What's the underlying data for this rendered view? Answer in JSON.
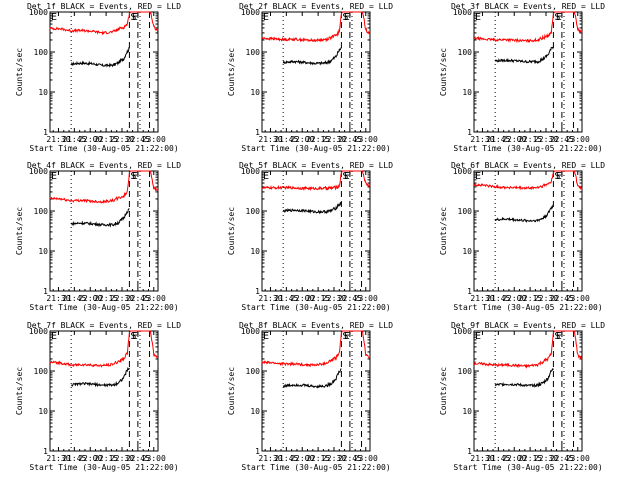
{
  "x_tick_labels": [
    "21:30",
    "21:45",
    "22:00",
    "22:15",
    "22:30",
    "22:45",
    "23:00"
  ],
  "x_label": "Start Time (30-Aug-05 21:22:00)",
  "y_label": "Counts/sec",
  "y_tick_labels": [
    "1",
    "10",
    "100",
    "1000"
  ],
  "event_markers": [
    "S",
    "E"
  ],
  "series_colors": {
    "events": "#000000",
    "lld": "#ff0000"
  },
  "chart_data": [
    {
      "type": "line",
      "title": "Det 1f BLACK = Events, RED = LLD",
      "xlabel": "Start Time (30-Aug-05 21:22:00)",
      "ylabel": "Counts/sec",
      "xlim_minutes_after_2122": [
        0,
        102
      ],
      "ylim_log": [
        1,
        1000
      ],
      "vlines_minutes": {
        "dotted": [
          20,
          85
        ],
        "dashed": [
          75,
          83,
          94
        ]
      },
      "series": [
        {
          "name": "Events",
          "color": "#000000",
          "x_minutes": [
            20,
            30,
            40,
            50,
            60,
            65,
            70,
            72,
            75
          ],
          "values": [
            50,
            53,
            51,
            46,
            47,
            55,
            70,
            95,
            120
          ]
        },
        {
          "name": "LLD",
          "color": "#ff0000",
          "x_minutes": [
            0,
            10,
            20,
            30,
            40,
            50,
            60,
            65,
            70,
            73,
            75,
            76,
            95,
            98,
            102
          ],
          "values": [
            390,
            380,
            340,
            345,
            330,
            300,
            320,
            380,
            420,
            500,
            900,
            1000,
            1000,
            420,
            350
          ]
        }
      ]
    },
    {
      "type": "line",
      "title": "Det 2f BLACK = Events, RED = LLD",
      "xlabel": "Start Time (30-Aug-05 21:22:00)",
      "ylabel": "Counts/sec",
      "xlim_minutes_after_2122": [
        0,
        102
      ],
      "ylim_log": [
        1,
        1000
      ],
      "vlines_minutes": {
        "dotted": [
          20,
          85
        ],
        "dashed": [
          75,
          83,
          94
        ]
      },
      "series": [
        {
          "name": "Events",
          "color": "#000000",
          "x_minutes": [
            20,
            30,
            40,
            50,
            60,
            65,
            70,
            72,
            75
          ],
          "values": [
            55,
            58,
            55,
            52,
            53,
            60,
            78,
            100,
            130
          ]
        },
        {
          "name": "LLD",
          "color": "#ff0000",
          "x_minutes": [
            0,
            10,
            20,
            30,
            40,
            50,
            60,
            65,
            70,
            73,
            75,
            76,
            95,
            98,
            102
          ],
          "values": [
            220,
            215,
            205,
            210,
            200,
            195,
            205,
            230,
            260,
            320,
            900,
            1000,
            1000,
            360,
            300
          ]
        }
      ]
    },
    {
      "type": "line",
      "title": "Det 3f BLACK = Events, RED = LLD",
      "xlabel": "Start Time (30-Aug-05 21:22:00)",
      "ylabel": "Counts/sec",
      "xlim_minutes_after_2122": [
        0,
        102
      ],
      "ylim_log": [
        1,
        1000
      ],
      "vlines_minutes": {
        "dotted": [
          20,
          85
        ],
        "dashed": [
          75,
          83,
          94
        ]
      },
      "series": [
        {
          "name": "Events",
          "color": "#000000",
          "x_minutes": [
            20,
            30,
            40,
            50,
            60,
            65,
            70,
            72,
            75
          ],
          "values": [
            60,
            62,
            60,
            57,
            58,
            66,
            85,
            110,
            140
          ]
        },
        {
          "name": "LLD",
          "color": "#ff0000",
          "x_minutes": [
            0,
            10,
            20,
            30,
            40,
            50,
            60,
            65,
            70,
            73,
            75,
            76,
            95,
            98,
            102
          ],
          "values": [
            220,
            210,
            200,
            205,
            195,
            190,
            200,
            225,
            255,
            310,
            900,
            1000,
            1000,
            360,
            310
          ]
        }
      ]
    },
    {
      "type": "line",
      "title": "Det 4f BLACK = Events, RED = LLD",
      "xlabel": "Start Time (30-Aug-05 21:22:00)",
      "ylabel": "Counts/sec",
      "xlim_minutes_after_2122": [
        0,
        102
      ],
      "ylim_log": [
        1,
        1000
      ],
      "vlines_minutes": {
        "dotted": [
          20,
          85
        ],
        "dashed": [
          75,
          83,
          94
        ]
      },
      "series": [
        {
          "name": "Events",
          "color": "#000000",
          "x_minutes": [
            20,
            30,
            40,
            50,
            60,
            65,
            70,
            72,
            75
          ],
          "values": [
            48,
            50,
            48,
            45,
            46,
            52,
            68,
            90,
            115
          ]
        },
        {
          "name": "LLD",
          "color": "#ff0000",
          "x_minutes": [
            0,
            10,
            20,
            30,
            40,
            50,
            60,
            65,
            70,
            73,
            75,
            76,
            95,
            98,
            102
          ],
          "values": [
            205,
            200,
            180,
            185,
            175,
            170,
            185,
            210,
            240,
            300,
            900,
            1000,
            1000,
            380,
            320
          ]
        }
      ]
    },
    {
      "type": "line",
      "title": "Det 5f BLACK = Events, RED = LLD",
      "xlabel": "Start Time (30-Aug-05 21:22:00)",
      "ylabel": "Counts/sec",
      "xlim_minutes_after_2122": [
        0,
        102
      ],
      "ylim_log": [
        1,
        1000
      ],
      "vlines_minutes": {
        "dotted": [
          20,
          85
        ],
        "dashed": [
          75,
          83,
          94
        ]
      },
      "series": [
        {
          "name": "Events",
          "color": "#000000",
          "x_minutes": [
            20,
            30,
            40,
            50,
            60,
            65,
            70,
            72,
            75
          ],
          "values": [
            100,
            105,
            102,
            95,
            96,
            100,
            120,
            140,
            160
          ]
        },
        {
          "name": "LLD",
          "color": "#ff0000",
          "x_minutes": [
            0,
            10,
            20,
            30,
            40,
            50,
            60,
            65,
            70,
            73,
            75,
            76,
            95,
            98,
            102
          ],
          "values": [
            380,
            380,
            385,
            380,
            370,
            365,
            370,
            375,
            390,
            420,
            900,
            1000,
            1000,
            480,
            420
          ]
        }
      ]
    },
    {
      "type": "line",
      "title": "Det 6f BLACK = Events, RED = LLD",
      "xlabel": "Start Time (30-Aug-05 21:22:00)",
      "ylabel": "Counts/sec",
      "xlim_minutes_after_2122": [
        0,
        102
      ],
      "ylim_log": [
        1,
        1000
      ],
      "vlines_minutes": {
        "dotted": [
          20,
          85
        ],
        "dashed": [
          75,
          83,
          94
        ]
      },
      "series": [
        {
          "name": "Events",
          "color": "#000000",
          "x_minutes": [
            20,
            30,
            40,
            50,
            60,
            65,
            70,
            72,
            75
          ],
          "values": [
            60,
            63,
            60,
            57,
            58,
            66,
            85,
            110,
            140
          ]
        },
        {
          "name": "LLD",
          "color": "#ff0000",
          "x_minutes": [
            0,
            10,
            20,
            30,
            40,
            50,
            60,
            65,
            70,
            73,
            75,
            76,
            95,
            98,
            102
          ],
          "values": [
            450,
            440,
            400,
            390,
            380,
            370,
            385,
            420,
            470,
            560,
            900,
            1000,
            1000,
            420,
            360
          ]
        }
      ]
    },
    {
      "type": "line",
      "title": "Det 7f BLACK = Events, RED = LLD",
      "xlabel": "Start Time (30-Aug-05 21:22:00)",
      "ylabel": "Counts/sec",
      "xlim_minutes_after_2122": [
        0,
        102
      ],
      "ylim_log": [
        1,
        1000
      ],
      "vlines_minutes": {
        "dotted": [
          20,
          85
        ],
        "dashed": [
          75,
          83,
          94
        ]
      },
      "series": [
        {
          "name": "Events",
          "color": "#000000",
          "x_minutes": [
            20,
            30,
            40,
            50,
            60,
            65,
            70,
            72,
            75
          ],
          "values": [
            45,
            48,
            47,
            44,
            45,
            52,
            70,
            95,
            120
          ]
        },
        {
          "name": "LLD",
          "color": "#ff0000",
          "x_minutes": [
            0,
            10,
            20,
            30,
            40,
            50,
            60,
            65,
            70,
            73,
            75,
            76,
            95,
            98,
            102
          ],
          "values": [
            165,
            160,
            140,
            145,
            140,
            135,
            150,
            175,
            210,
            280,
            900,
            1000,
            1000,
            260,
            220
          ]
        }
      ]
    },
    {
      "type": "line",
      "title": "Det 8f BLACK = Events, RED = LLD",
      "xlabel": "Start Time (30-Aug-05 21:22:00)",
      "ylabel": "Counts/sec",
      "xlim_minutes_after_2122": [
        0,
        102
      ],
      "ylim_log": [
        1,
        1000
      ],
      "vlines_minutes": {
        "dotted": [
          20,
          85
        ],
        "dashed": [
          75,
          83,
          94
        ]
      },
      "series": [
        {
          "name": "Events",
          "color": "#000000",
          "x_minutes": [
            20,
            30,
            40,
            50,
            60,
            65,
            70,
            72,
            75
          ],
          "values": [
            42,
            45,
            44,
            41,
            42,
            48,
            65,
            88,
            110
          ]
        },
        {
          "name": "LLD",
          "color": "#ff0000",
          "x_minutes": [
            0,
            10,
            20,
            30,
            40,
            50,
            60,
            65,
            70,
            73,
            75,
            76,
            95,
            98,
            102
          ],
          "values": [
            165,
            160,
            150,
            150,
            145,
            140,
            155,
            180,
            215,
            280,
            900,
            1000,
            1000,
            260,
            220
          ]
        }
      ]
    },
    {
      "type": "line",
      "title": "Det 9f BLACK = Events, RED = LLD",
      "xlabel": "Start Time (30-Aug-05 21:22:00)",
      "ylabel": "Counts/sec",
      "xlim_minutes_after_2122": [
        0,
        102
      ],
      "ylim_log": [
        1,
        1000
      ],
      "vlines_minutes": {
        "dotted": [
          20,
          85
        ],
        "dashed": [
          75,
          83,
          94
        ]
      },
      "series": [
        {
          "name": "Events",
          "color": "#000000",
          "x_minutes": [
            20,
            30,
            40,
            50,
            60,
            65,
            70,
            72,
            75
          ],
          "values": [
            45,
            47,
            46,
            43,
            44,
            50,
            66,
            90,
            115
          ]
        },
        {
          "name": "LLD",
          "color": "#ff0000",
          "x_minutes": [
            0,
            10,
            20,
            30,
            40,
            50,
            60,
            65,
            70,
            73,
            75,
            76,
            95,
            98,
            102
          ],
          "values": [
            155,
            150,
            140,
            142,
            138,
            132,
            145,
            170,
            205,
            270,
            900,
            1000,
            1000,
            250,
            210
          ]
        }
      ]
    }
  ]
}
